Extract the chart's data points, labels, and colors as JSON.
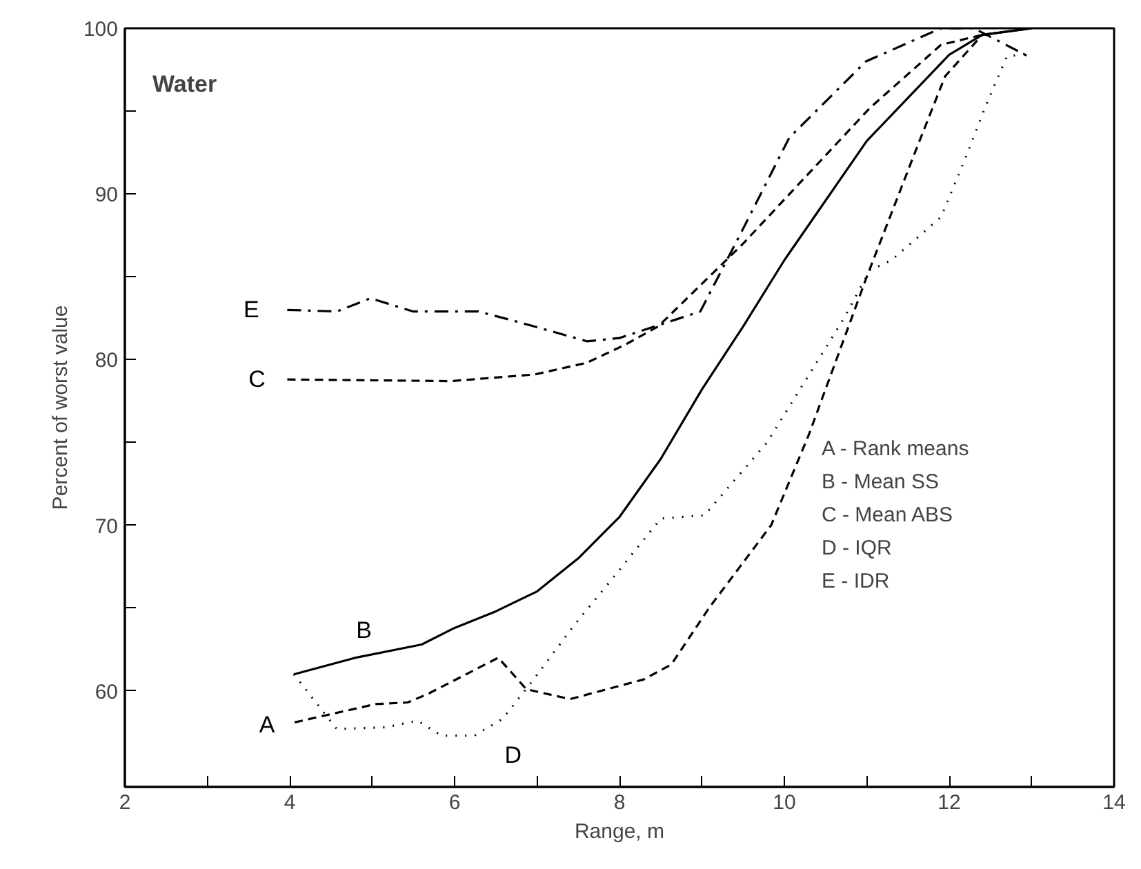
{
  "chart_data": {
    "type": "line",
    "title": "Water",
    "xlabel": "Range, m",
    "ylabel": "Percent of worst value",
    "xlim": [
      2,
      14
    ],
    "ylim": [
      54.2,
      100
    ],
    "xticks": [
      2,
      {
        "value": 3,
        "label": null
      },
      4,
      {
        "value": 5,
        "label": null
      },
      6,
      {
        "value": 7,
        "label": null
      },
      8,
      {
        "value": 9,
        "label": null
      },
      10,
      {
        "value": 11,
        "label": null
      },
      12,
      {
        "value": 13,
        "label": null
      },
      14
    ],
    "yticks": [
      60,
      {
        "value": 65,
        "label": null
      },
      70,
      {
        "value": 75,
        "label": null
      },
      80,
      {
        "value": 85,
        "label": null
      },
      90,
      {
        "value": 95,
        "label": null
      },
      100
    ],
    "grid": false,
    "legend": false,
    "marker": "none",
    "series": [
      {
        "name": "A",
        "color": "#000000",
        "line_style": "dashed",
        "x": [
          4.06,
          5.04,
          5.43,
          5.67,
          6.53,
          6.87,
          7.4,
          8.3,
          8.63,
          9.1,
          9.84,
          10.3,
          11.0,
          11.6,
          11.95,
          12.4,
          13
        ],
        "values": [
          58.1,
          59.2,
          59.3,
          59.8,
          62.0,
          60.1,
          59.5,
          60.7,
          61.6,
          65.1,
          70.0,
          75.5,
          85.0,
          92.7,
          97.1,
          99.6,
          100
        ]
      },
      {
        "name": "B",
        "color": "#000000",
        "line_style": "solid",
        "x": [
          4.05,
          4.8,
          5.6,
          6,
          6.5,
          7,
          7.5,
          8,
          8.5,
          9,
          9.5,
          10,
          10.5,
          11,
          11.5,
          12,
          12.4,
          13
        ],
        "values": [
          61.0,
          62.0,
          62.8,
          63.8,
          64.8,
          66.0,
          68.0,
          70.5,
          74.0,
          78.2,
          82.0,
          86.0,
          89.6,
          93.2,
          95.8,
          98.4,
          99.6,
          100
        ]
      },
      {
        "name": "C",
        "color": "#000000",
        "line_style": "dashed",
        "x": [
          3.97,
          5.95,
          6.97,
          7.6,
          8.07,
          8.47,
          9.5,
          11.04,
          11.9,
          12.4,
          13
        ],
        "values": [
          78.8,
          78.7,
          79.1,
          79.8,
          80.9,
          82.0,
          87.0,
          95.2,
          99.0,
          99.6,
          100
        ]
      },
      {
        "name": "D",
        "color": "#000000",
        "line_style": "dotted",
        "x": [
          4.05,
          4.57,
          5.16,
          5.55,
          5.84,
          6.24,
          6.58,
          6.96,
          7.44,
          8.0,
          8.5,
          9.03,
          9.79,
          10.7,
          11.04,
          11.3,
          11.9,
          12.2,
          12.45,
          12.7,
          13
        ],
        "values": [
          61.0,
          57.7,
          57.8,
          58.2,
          57.3,
          57.3,
          58.3,
          60.7,
          63.9,
          67.3,
          70.4,
          70.6,
          75.0,
          82.3,
          85.4,
          86.0,
          88.6,
          92.2,
          95.4,
          98.3,
          98.5
        ]
      },
      {
        "name": "E",
        "color": "#000000",
        "line_style": "dashdot",
        "x": [
          3.97,
          4.57,
          4.98,
          5.5,
          6.29,
          6.75,
          7.61,
          8.0,
          8.98,
          9.5,
          10.06,
          10.99,
          11.9,
          12.3,
          12.96
        ],
        "values": [
          83.0,
          82.9,
          83.7,
          82.9,
          82.9,
          82.3,
          81.1,
          81.3,
          82.9,
          87.9,
          93.4,
          98.0,
          100,
          100,
          98.3
        ]
      }
    ],
    "annotations": [
      "A - Rank means",
      "B  - Mean SS",
      "C - Mean ABS",
      "D - IQR",
      "E  - IDR"
    ]
  }
}
